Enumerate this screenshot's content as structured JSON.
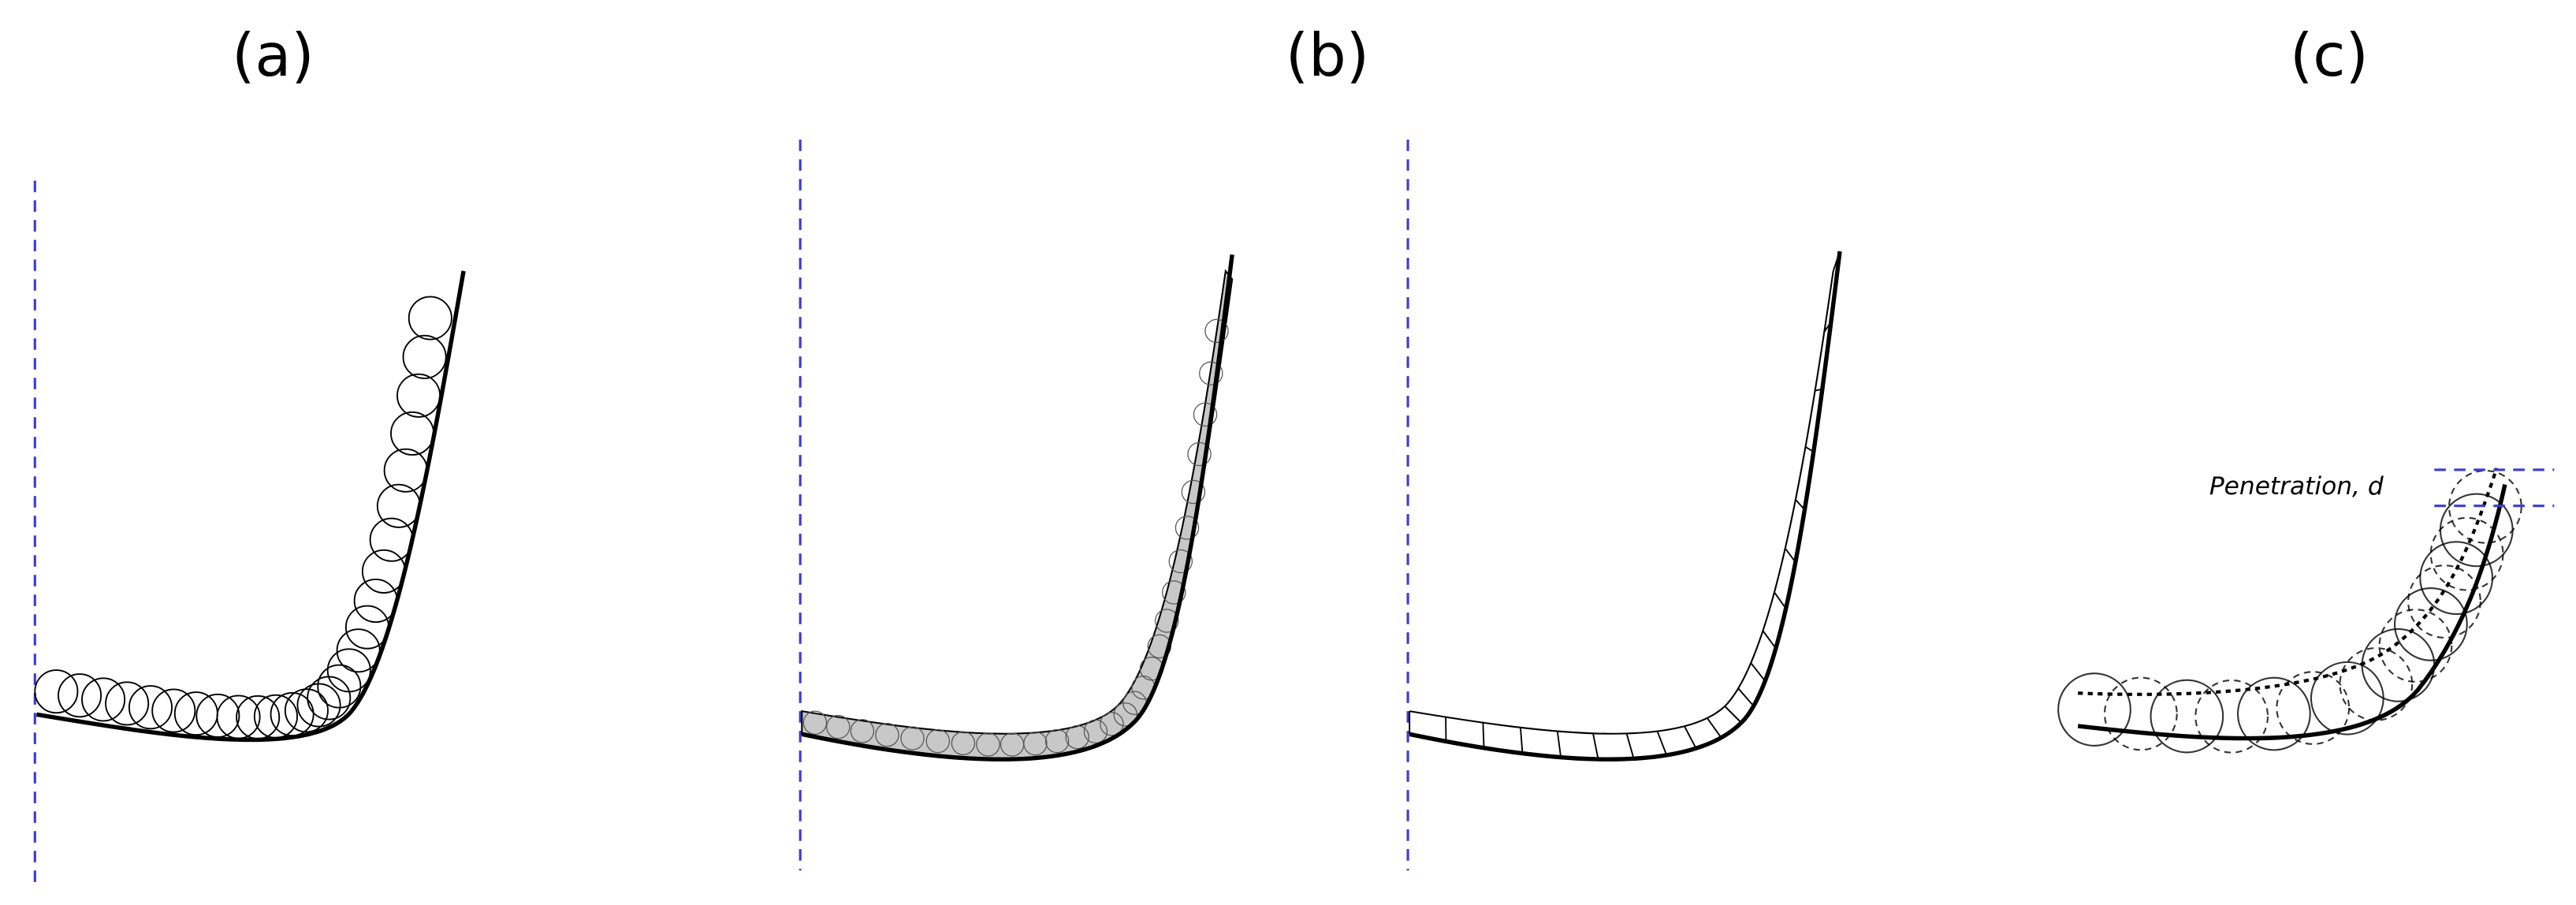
{
  "panels": [
    {
      "label": "(a)"
    },
    {
      "label": "(b)"
    },
    {
      "label": "(c)"
    }
  ],
  "annotation": "Penetration, d"
}
